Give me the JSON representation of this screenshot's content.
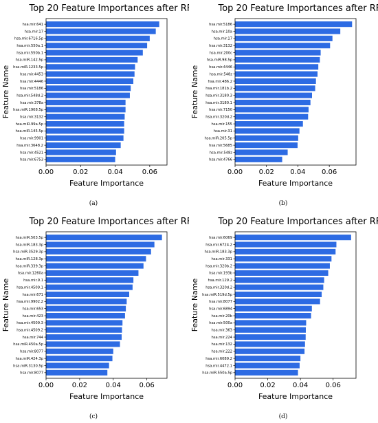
{
  "colors": {
    "bar": "#2d6be3"
  },
  "chart_data": [
    {
      "type": "bar",
      "orientation": "horizontal",
      "caption": "(a)",
      "title": "Top 20 Feature Importances after RFE",
      "xlabel": "Feature Importance",
      "ylabel": "Feature Name",
      "xlim": [
        0,
        0.07
      ],
      "xticks": [
        "0.00",
        "0.02",
        "0.04",
        "0.06"
      ],
      "categories": [
        "hsa.mir.641",
        "hsa.mir.17",
        "hsa.mir.6716.5p",
        "hsa.mir.550a.1",
        "hsa.mir.550b.1",
        "hsa.miR.142.5p",
        "hsa.miR.1233.5p",
        "hsa.mir.4453",
        "hsa.mir.4446",
        "hsa.mir.5186",
        "hsa.mir.548d.2",
        "hsa.mir.378a",
        "hsa.miR.1908.5p",
        "hsa.mir.3132",
        "hsa.miR.99a.5p",
        "hsa.miR.145.5p",
        "hsa.mir.9901",
        "hsa.mir.3648.2",
        "hsa.mir.4521",
        "hsa.mir.6753"
      ],
      "values": [
        0.0655,
        0.0635,
        0.06,
        0.0585,
        0.056,
        0.053,
        0.0515,
        0.0512,
        0.0505,
        0.049,
        0.0485,
        0.046,
        0.046,
        0.0455,
        0.0452,
        0.0452,
        0.0448,
        0.0432,
        0.0405,
        0.04
      ]
    },
    {
      "type": "bar",
      "orientation": "horizontal",
      "caption": "(b)",
      "title": "Top 20 Feature Importances after RFE",
      "xlabel": "Feature Importance",
      "ylabel": "Feature Name",
      "xlim": [
        0,
        0.077
      ],
      "xticks": [
        "0.00",
        "0.02",
        "0.04",
        "0.06"
      ],
      "categories": [
        "hsa.mir.5186",
        "hsa.mir.10a",
        "hsa.mir.17",
        "hsa.mir.3132",
        "hsa.mir.200c",
        "hsa.miR.98.5p",
        "hsa.mir.4446",
        "hsa.mir.548z",
        "hsa.mir.486.2",
        "hsa.mir.181b.2",
        "hsa.mir.3180.3",
        "hsa.mir.3180.1",
        "hsa.mir.7150",
        "hsa.mir.320d.2",
        "hsa.mir.155",
        "hsa.mir.31",
        "hsa.miR.205.5p",
        "hsa.mir.5685",
        "hsa.mir.548z",
        "hsa.mir.4766"
      ],
      "values": [
        0.0745,
        0.067,
        0.062,
        0.0605,
        0.0545,
        0.054,
        0.053,
        0.0525,
        0.0515,
        0.051,
        0.049,
        0.048,
        0.0468,
        0.0465,
        0.0432,
        0.041,
        0.0402,
        0.0398,
        0.0335,
        0.03
      ]
    },
    {
      "type": "bar",
      "orientation": "horizontal",
      "caption": "(c)",
      "title": "Top 20 Feature Importances after RFE",
      "xlabel": "Feature Importance",
      "ylabel": "Feature Name",
      "xlim": [
        0,
        0.072
      ],
      "xticks": [
        "0.00",
        "0.02",
        "0.04",
        "0.06"
      ],
      "categories": [
        "hsa.miR.503.5p",
        "hsa.miR.183.3p",
        "hsa.miR.3529.3p",
        "hsa.miR.128.3p",
        "hsa.miR.339.3p",
        "hsa.mir.1260a",
        "hsa.mir.9.1",
        "hsa.mir.4509.1",
        "hsa.mir.671",
        "hsa.mir.9902.2",
        "hsa.mir.653",
        "hsa.mir.423",
        "hsa.mir.4509.3",
        "hsa.mir.4509.2",
        "hsa.mir.744",
        "hsa.miR.450a.5p",
        "hsa.mir.8077",
        "hsa.miR.424.3p",
        "hsa.miR.3130.5p",
        "hsa.mir.8077"
      ],
      "values": [
        0.069,
        0.0645,
        0.0625,
        0.0595,
        0.058,
        0.055,
        0.052,
        0.0515,
        0.0495,
        0.048,
        0.0475,
        0.047,
        0.0455,
        0.0452,
        0.045,
        0.044,
        0.04,
        0.0395,
        0.0375,
        0.0365
      ]
    },
    {
      "type": "bar",
      "orientation": "horizontal",
      "caption": "(d)",
      "title": "Top 20 Feature Importances after RFE",
      "xlabel": "Feature Importance",
      "ylabel": "Feature Name",
      "xlim": [
        0,
        0.074
      ],
      "xticks": [
        "0.00",
        "0.02",
        "0.04",
        "0.06"
      ],
      "categories": [
        "hsa.mir.6069",
        "hsa.mir.6724.2",
        "hsa.miR.183.3p",
        "hsa.mir.331",
        "hsa.mir.320b.2",
        "hsa.mir.193b",
        "hsa.mir.129.2",
        "hsa.mir.320d.2",
        "hsa.miR.519d.5p",
        "hsa.mir.8077",
        "hsa.mir.6894",
        "hsa.mir.20b",
        "hsa.mir.500a",
        "hsa.mir.363",
        "hsa.mir.224",
        "hsa.mir.132",
        "hsa.mir.222",
        "hsa.mir.6089.2",
        "hsa.mir.4472.1",
        "hsa.miR.550a.5p"
      ],
      "values": [
        0.071,
        0.062,
        0.0615,
        0.059,
        0.058,
        0.057,
        0.0545,
        0.054,
        0.053,
        0.052,
        0.047,
        0.0465,
        0.0435,
        0.0433,
        0.0432,
        0.0428,
        0.0425,
        0.04,
        0.0395,
        0.0385
      ]
    }
  ]
}
